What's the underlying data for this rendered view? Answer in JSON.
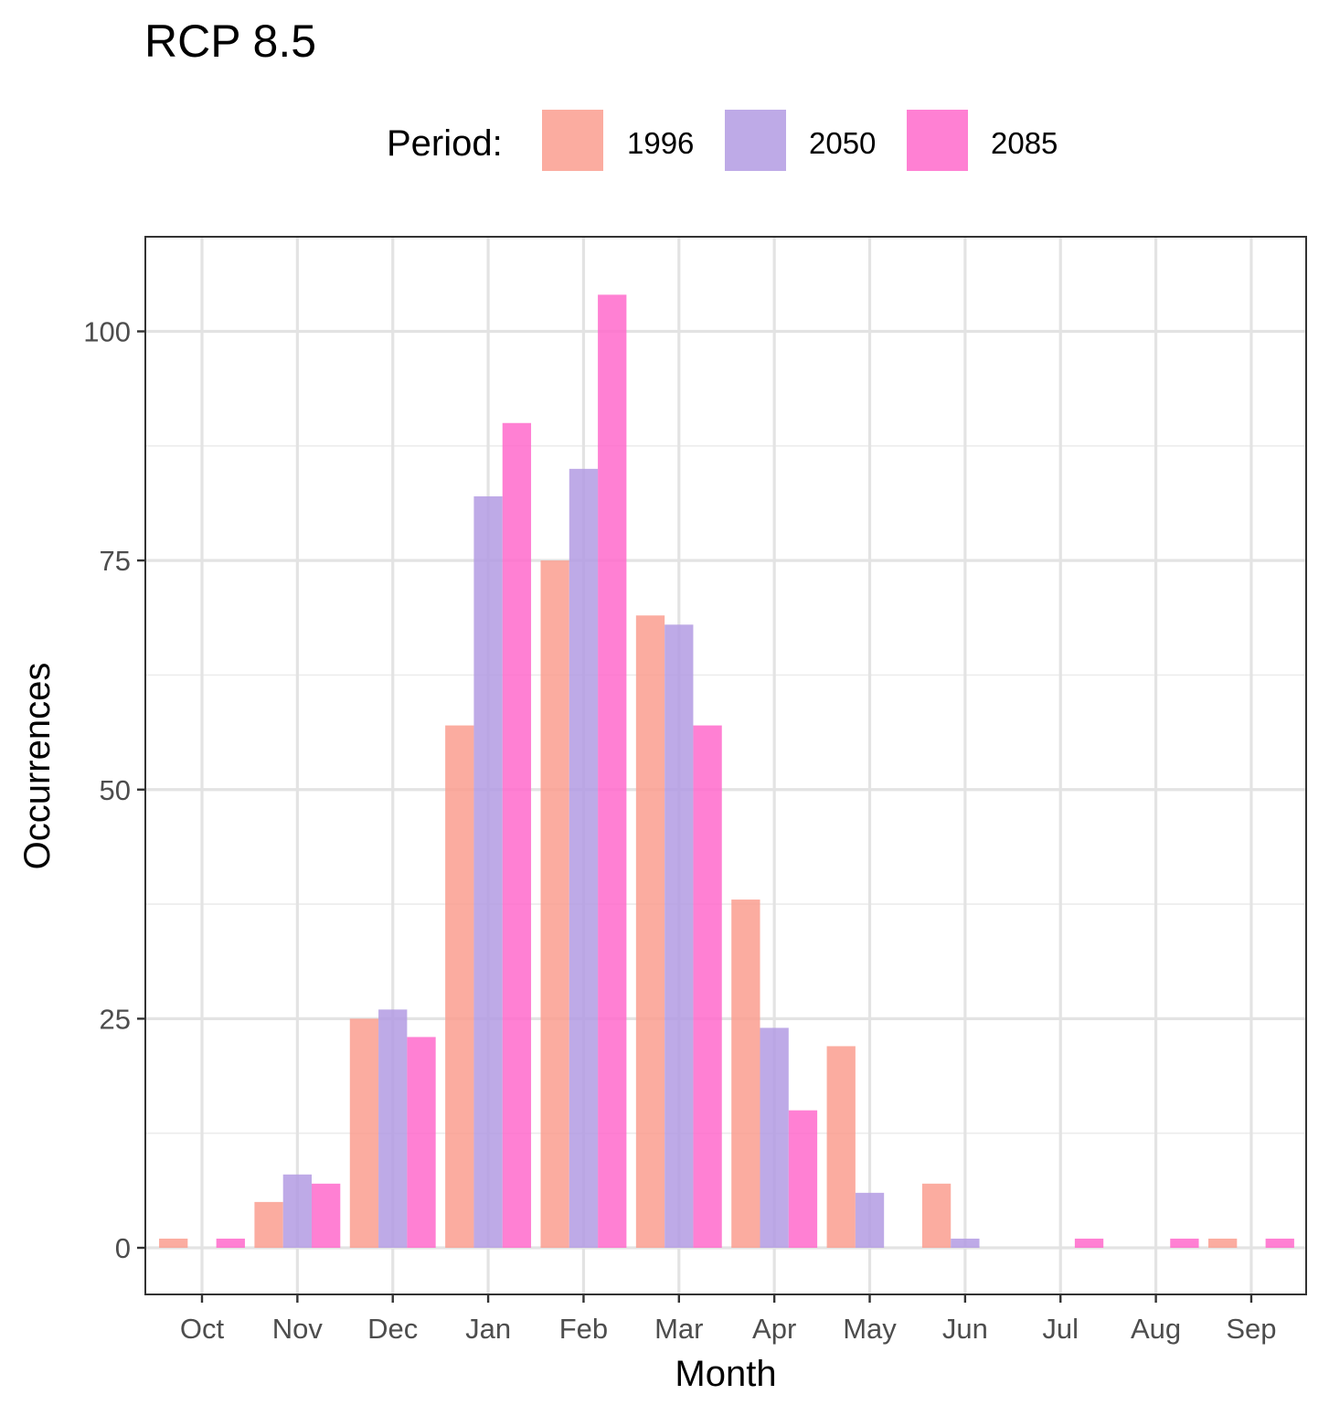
{
  "chart_data": {
    "type": "bar",
    "title": "RCP 8.5",
    "xlabel": "Month",
    "ylabel": "Occurrences",
    "categories": [
      "Oct",
      "Nov",
      "Dec",
      "Jan",
      "Feb",
      "Mar",
      "Apr",
      "May",
      "Jun",
      "Jul",
      "Aug",
      "Sep"
    ],
    "ylim": [
      -5,
      110
    ],
    "yticks": [
      0,
      25,
      50,
      75,
      100
    ],
    "grid": true,
    "legend": {
      "title": "Period:",
      "position": "top"
    },
    "series": [
      {
        "name": "1996",
        "color": "#FA9D8F",
        "values": [
          1,
          5,
          25,
          57,
          75,
          69,
          38,
          22,
          7,
          0,
          0,
          1
        ]
      },
      {
        "name": "2050",
        "color": "#B39BE3",
        "values": [
          0,
          8,
          26,
          82,
          85,
          68,
          24,
          6,
          1,
          0,
          0,
          0
        ]
      },
      {
        "name": "2085",
        "color": "#FF6ACB",
        "values": [
          1,
          7,
          23,
          90,
          104,
          57,
          15,
          0,
          0,
          1,
          1,
          1
        ]
      }
    ]
  }
}
